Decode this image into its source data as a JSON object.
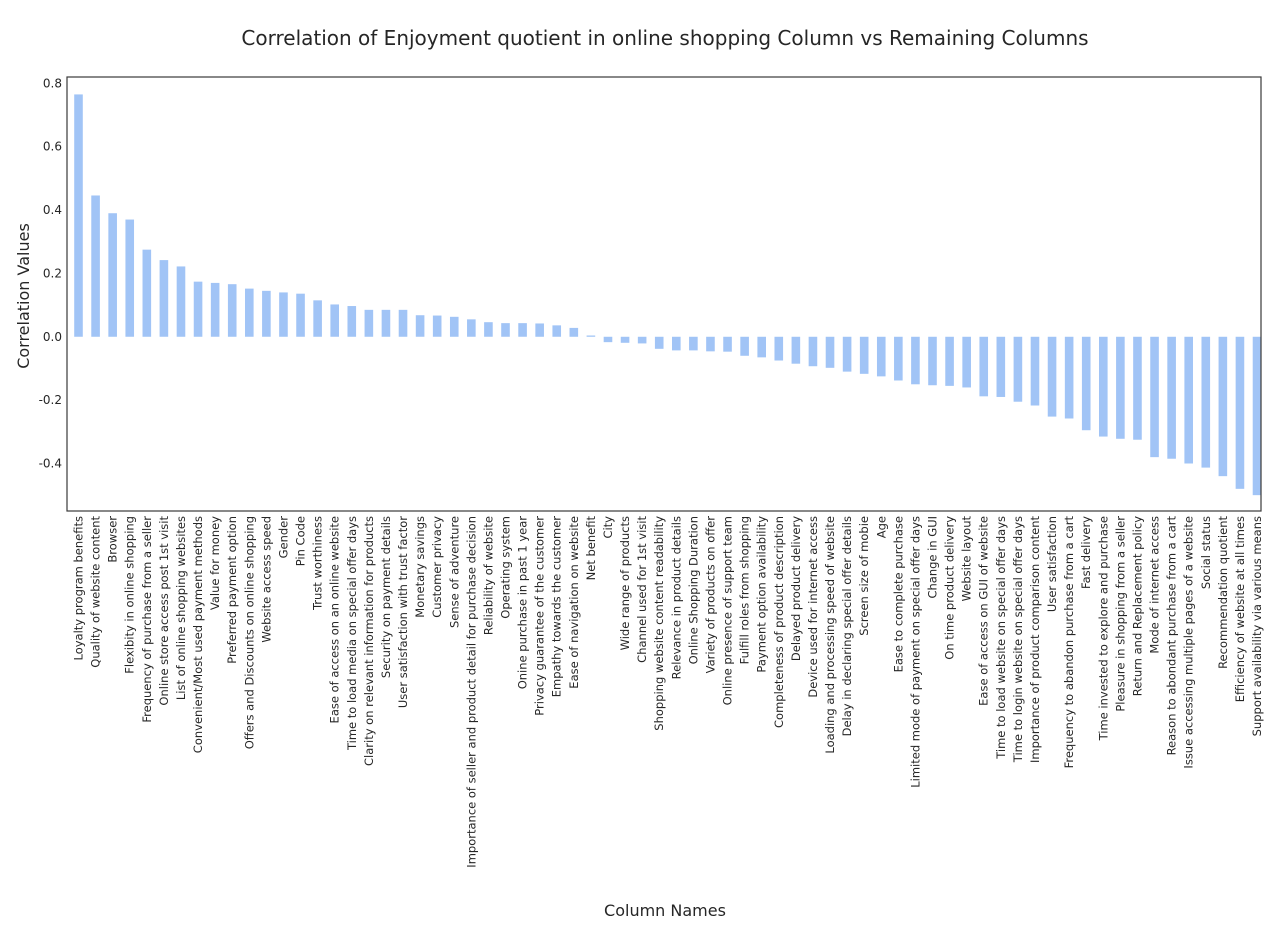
{
  "colors": {
    "bar": "#a1c4f6",
    "frame": "#3a3a3a",
    "text": "#262626"
  },
  "chart_data": {
    "type": "bar",
    "title": "Correlation of Enjoyment quotient in online shopping Column vs Remaining Columns",
    "xlabel": "Column Names",
    "ylabel": "Correlation Values",
    "ylim": [
      -0.55,
      0.82
    ],
    "yticks": [
      -0.4,
      -0.2,
      0.0,
      0.2,
      0.4,
      0.6,
      0.8
    ],
    "ytick_labels": [
      "-0.4",
      "-0.2",
      "0.0",
      "0.2",
      "0.4",
      "0.6",
      "0.8"
    ],
    "grid": false,
    "legend": "none",
    "categories": [
      "Loyalty program benefits",
      "Quality of website content",
      "Browser",
      "Flexibity in online shopping",
      "Frequency of purchase from a seller",
      "Online store access post 1st visit",
      "List of online shopping websites",
      "Convenient/Most used payment methods",
      "Value for money",
      "Preferred payment option",
      "Offers and Discounts on online shopping",
      "Website access speed",
      "Gender",
      "Pin Code",
      "Trust worthiness",
      "Ease of access on an online website",
      "Time to load media on special offer days",
      "Clarity on relevant information for products",
      "Security on payment details",
      "User satisfaction with trust factor",
      "Monetary savings",
      "Customer privacy",
      "Sense of adventure",
      "Importance of seller and product detail for purchase decision",
      "Reliability of website",
      "Operating system",
      "Onine purchase in past 1 year",
      "Privacy guarantee of the customer",
      "Empathy towards the customer",
      "Ease of navigation on website",
      "Net benefit",
      "City",
      "Wide range of products",
      "Channel used for 1st visit",
      "Shopping website content readability",
      "Relevance in product details",
      "Online Shopping Duration",
      "Variety of products on offer",
      "Online presence of support team",
      "Fulfill roles from shopping",
      "Payment option availability",
      "Completeness of product description",
      "Delayed product delivery",
      "Device used for internet access",
      "Loading and processing speed of website",
      "Delay in declaring special offer details",
      "Screen size of mobie",
      "Age",
      "Ease to complete purchase",
      "Limited mode of payment on special offer days",
      "Change in GUI",
      "On time product delivery",
      "Website layout",
      "Ease of access on GUI of website",
      "Time to load website on special offer days",
      "Time to login website on special offer days",
      "Importance of product comparison content",
      "User satisfaction",
      "Frequency to abandon purchase from a cart",
      "Fast delivery",
      "Time invested to explore and purchase",
      "Pleasure in shopping from a seller",
      "Return and Replacement policy",
      "Mode of internet access",
      "Reason to abondant purchase from a cart",
      "Issue accessing multiple pages of a website",
      "Social status",
      "Recommendation quotient",
      "Efficiency of website at all times",
      "Support availability via various means"
    ],
    "values": [
      0.765,
      0.446,
      0.39,
      0.37,
      0.275,
      0.242,
      0.222,
      0.174,
      0.17,
      0.166,
      0.152,
      0.145,
      0.14,
      0.136,
      0.115,
      0.102,
      0.097,
      0.085,
      0.085,
      0.085,
      0.068,
      0.067,
      0.063,
      0.055,
      0.046,
      0.043,
      0.043,
      0.042,
      0.036,
      0.028,
      0.004,
      -0.017,
      -0.019,
      -0.021,
      -0.038,
      -0.043,
      -0.043,
      -0.046,
      -0.047,
      -0.06,
      -0.065,
      -0.075,
      -0.085,
      -0.093,
      -0.098,
      -0.11,
      -0.117,
      -0.125,
      -0.138,
      -0.15,
      -0.153,
      -0.155,
      -0.16,
      -0.188,
      -0.19,
      -0.205,
      -0.217,
      -0.252,
      -0.258,
      -0.295,
      -0.315,
      -0.322,
      -0.325,
      -0.38,
      -0.385,
      -0.4,
      -0.413,
      -0.44,
      -0.48,
      -0.5
    ]
  }
}
